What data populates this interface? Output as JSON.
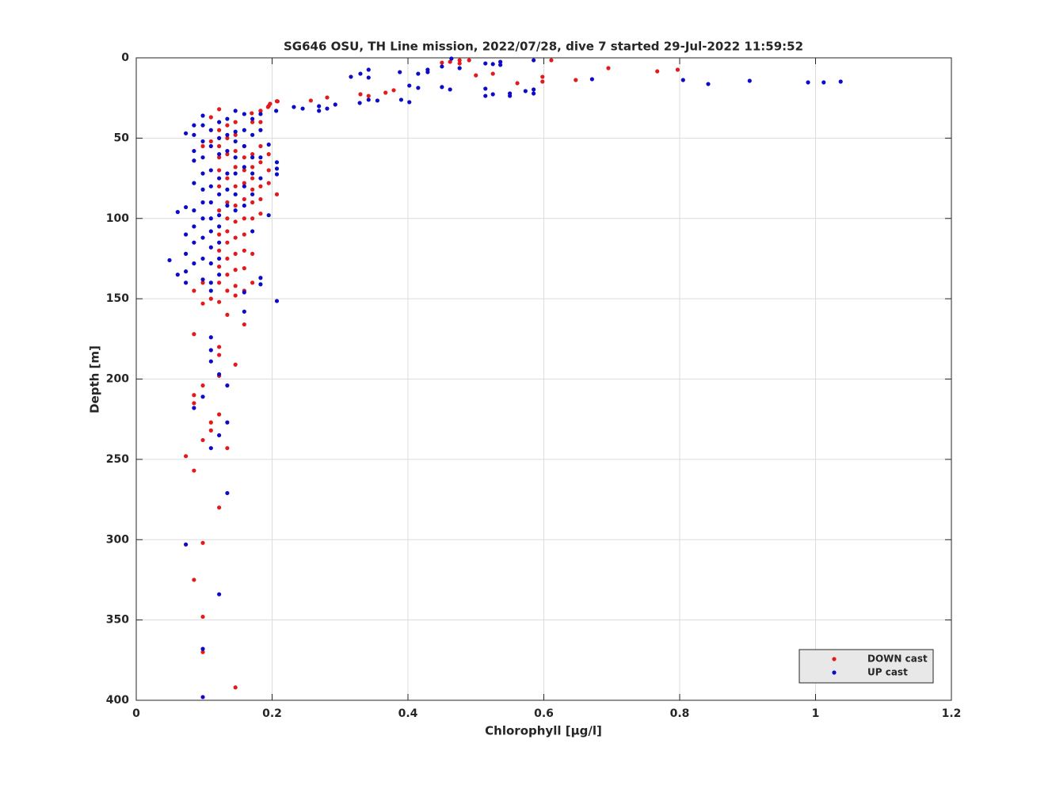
{
  "chart_data": {
    "type": "scatter",
    "title": "SG646 OSU, TH Line mission, 2022/07/28, dive 7 started 29-Jul-2022 11:59:52",
    "x_label": "Chlorophyll [μg/l]",
    "y_label": "Depth [m]",
    "xlim": [
      0,
      1.2
    ],
    "xticks": [
      0,
      0.2,
      0.4,
      0.6,
      0.8,
      1,
      1.2
    ],
    "ylim": [
      0,
      400
    ],
    "yticks": [
      0,
      50,
      100,
      150,
      200,
      250,
      300,
      350,
      400
    ],
    "y_reversed": true,
    "grid": true,
    "legend_position": "lower-right",
    "series": [
      {
        "name": "DOWN cast",
        "color": "#e31a1c",
        "x": [
          0.49,
          0.476,
          0.476,
          0.462,
          0.45,
          0.611,
          0.695,
          0.767,
          0.797,
          0.647,
          0.598,
          0.598,
          0.561,
          0.525,
          0.5,
          0.379,
          0.367,
          0.342,
          0.33,
          0.281,
          0.257,
          0.208,
          0.197,
          0.194,
          0.183,
          0.17,
          0.122,
          0.122,
          0.122,
          0.122,
          0.122,
          0.122,
          0.122,
          0.122,
          0.122,
          0.122,
          0.122,
          0.122,
          0.122,
          0.122,
          0.122,
          0.122,
          0.134,
          0.134,
          0.134,
          0.134,
          0.134,
          0.134,
          0.134,
          0.134,
          0.134,
          0.134,
          0.134,
          0.134,
          0.134,
          0.146,
          0.146,
          0.146,
          0.146,
          0.146,
          0.146,
          0.146,
          0.146,
          0.146,
          0.146,
          0.146,
          0.146,
          0.146,
          0.159,
          0.159,
          0.159,
          0.159,
          0.159,
          0.159,
          0.159,
          0.159,
          0.159,
          0.159,
          0.159,
          0.171,
          0.171,
          0.171,
          0.171,
          0.171,
          0.171,
          0.171,
          0.171,
          0.171,
          0.183,
          0.183,
          0.183,
          0.183,
          0.183,
          0.183,
          0.183,
          0.195,
          0.195,
          0.195,
          0.195,
          0.207,
          0.207,
          0.11,
          0.11,
          0.11,
          0.11,
          0.11,
          0.098,
          0.098,
          0.098,
          0.098,
          0.098,
          0.098,
          0.098,
          0.098,
          0.085,
          0.085,
          0.085,
          0.085,
          0.085,
          0.085,
          0.073,
          0.122,
          0.146
        ],
        "values": [
          1.5,
          1.5,
          3.5,
          2.5,
          3,
          1.5,
          6.4,
          8.4,
          7.4,
          13.8,
          11.8,
          14.8,
          15.8,
          9.9,
          10.9,
          20.2,
          21.7,
          23.7,
          22.7,
          24.7,
          26.6,
          27.1,
          28.6,
          30.6,
          33,
          34.5,
          32,
          45,
          55,
          62,
          70,
          80,
          95,
          110,
          120,
          130,
          140,
          152,
          180,
          185,
          198,
          222,
          42,
          50,
          60,
          75,
          90,
          100,
          108,
          115,
          125,
          135,
          145,
          160,
          243,
          40,
          48,
          58,
          68,
          80,
          92,
          102,
          112,
          122,
          132,
          142,
          148,
          191,
          55,
          62,
          70,
          78,
          88,
          100,
          110,
          120,
          131,
          145,
          166,
          40,
          60,
          68,
          75,
          82,
          90,
          100,
          122,
          140,
          33,
          40,
          55,
          65,
          80,
          88,
          97,
          30,
          60,
          70,
          78,
          27,
          85,
          37,
          52,
          150,
          227,
          232,
          55,
          140,
          153,
          204,
          238,
          302,
          348,
          370,
          145,
          172,
          210,
          215,
          257,
          325,
          248,
          280,
          392
        ]
      },
      {
        "name": "UP cast",
        "color": "#0b0bc8",
        "x": [
          1.037,
          1.012,
          0.989,
          0.903,
          0.842,
          0.805,
          0.671,
          0.585,
          0.585,
          0.573,
          0.55,
          0.55,
          0.525,
          0.514,
          0.514,
          0.514,
          0.525,
          0.536,
          0.536,
          0.585,
          0.476,
          0.464,
          0.45,
          0.45,
          0.462,
          0.429,
          0.429,
          0.415,
          0.415,
          0.402,
          0.388,
          0.39,
          0.402,
          0.355,
          0.342,
          0.342,
          0.33,
          0.316,
          0.329,
          0.342,
          0.293,
          0.281,
          0.269,
          0.269,
          0.245,
          0.232,
          0.206,
          0.207,
          0.207,
          0.207,
          0.207,
          0.049,
          0.061,
          0.061,
          0.073,
          0.073,
          0.073,
          0.073,
          0.073,
          0.073,
          0.073,
          0.085,
          0.085,
          0.085,
          0.085,
          0.085,
          0.085,
          0.085,
          0.085,
          0.085,
          0.085,
          0.098,
          0.098,
          0.098,
          0.098,
          0.098,
          0.098,
          0.098,
          0.098,
          0.098,
          0.098,
          0.098,
          0.098,
          0.098,
          0.098,
          0.11,
          0.11,
          0.11,
          0.11,
          0.11,
          0.11,
          0.11,
          0.11,
          0.11,
          0.11,
          0.11,
          0.11,
          0.11,
          0.11,
          0.11,
          0.122,
          0.122,
          0.122,
          0.122,
          0.122,
          0.122,
          0.122,
          0.122,
          0.122,
          0.122,
          0.122,
          0.122,
          0.122,
          0.134,
          0.134,
          0.134,
          0.134,
          0.134,
          0.134,
          0.134,
          0.134,
          0.134,
          0.146,
          0.146,
          0.146,
          0.146,
          0.146,
          0.146,
          0.146,
          0.159,
          0.159,
          0.159,
          0.159,
          0.159,
          0.159,
          0.159,
          0.159,
          0.171,
          0.171,
          0.171,
          0.171,
          0.171,
          0.171,
          0.183,
          0.183,
          0.183,
          0.183,
          0.183,
          0.183,
          0.195,
          0.195
        ],
        "values": [
          14.8,
          15.3,
          15.3,
          14.3,
          16.3,
          13.8,
          13.3,
          22.2,
          19.7,
          20.7,
          23.7,
          22.2,
          22.7,
          23.7,
          19.2,
          3.5,
          3.9,
          2.5,
          4.4,
          1.5,
          6.4,
          0.5,
          5.4,
          18.2,
          19.7,
          7.4,
          8.9,
          9.9,
          18.7,
          17.3,
          8.9,
          26.1,
          27.6,
          26.6,
          7.4,
          12.3,
          9.9,
          11.8,
          28.1,
          26.1,
          29.1,
          31.6,
          30.1,
          33,
          31.6,
          30.6,
          33,
          65,
          69,
          72.5,
          151.4,
          126,
          96,
          135,
          47,
          93,
          110,
          122,
          133,
          140,
          303,
          42,
          48,
          58,
          64,
          78,
          95,
          105,
          115,
          128,
          218,
          36,
          42,
          52,
          62,
          72,
          82,
          90,
          100,
          112,
          125,
          138,
          211,
          368,
          398,
          45,
          55,
          70,
          80,
          90,
          100,
          108,
          118,
          128,
          140,
          145,
          174,
          182,
          189,
          243,
          40,
          50,
          60,
          75,
          85,
          98,
          105,
          115,
          125,
          135,
          197,
          235,
          334,
          38,
          48,
          58,
          72,
          82,
          92,
          204,
          227,
          271,
          33,
          46,
          52,
          62,
          72,
          85,
          95,
          35,
          45,
          55,
          68,
          80,
          92,
          146,
          158,
          38,
          48,
          62,
          72,
          85,
          108,
          35,
          45,
          62,
          75,
          137,
          141,
          54,
          98
        ]
      }
    ]
  }
}
